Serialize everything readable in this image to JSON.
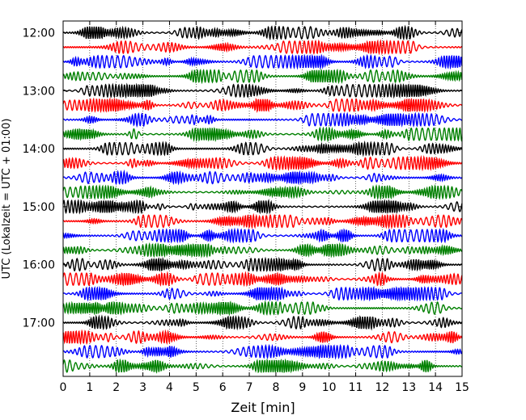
{
  "chart_data": {
    "type": "line",
    "title": "",
    "xlabel": "Zeit  [min]",
    "ylabel": "UTC (Lokalzeit = UTC + 01:00)",
    "xlim": [
      0,
      15
    ],
    "x_ticks": [
      "0",
      "1",
      "2",
      "3",
      "4",
      "5",
      "6",
      "7",
      "8",
      "9",
      "10",
      "11",
      "12",
      "13",
      "14",
      "15"
    ],
    "y_tick_labels": [
      "12:00",
      "13:00",
      "14:00",
      "15:00",
      "16:00",
      "17:00"
    ],
    "grid": "vertical dotted",
    "trace_count": 24,
    "trace_colors": [
      "#000000",
      "#ff0000",
      "#0000ff",
      "#008000"
    ]
  }
}
